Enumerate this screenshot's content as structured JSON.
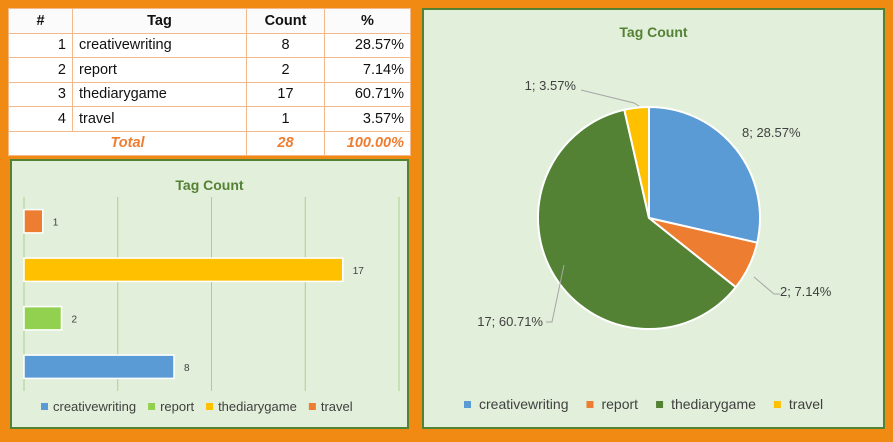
{
  "table": {
    "headers": [
      "#",
      "Tag",
      "Count",
      "%"
    ],
    "rows": [
      {
        "n": "1",
        "tag": "creativewriting",
        "count": "8",
        "pct": "28.57%"
      },
      {
        "n": "2",
        "tag": "report",
        "count": "2",
        "pct": "7.14%"
      },
      {
        "n": "3",
        "tag": "thediarygame",
        "count": "17",
        "pct": "60.71%"
      },
      {
        "n": "4",
        "tag": "travel",
        "count": "1",
        "pct": "3.57%"
      }
    ],
    "total": {
      "label": "Total",
      "count": "28",
      "pct": "100.00%"
    }
  },
  "chart_data": [
    {
      "type": "bar",
      "orientation": "horizontal",
      "title": "Tag Count",
      "categories": [
        "travel",
        "thediarygame",
        "report",
        "creativewriting"
      ],
      "values": [
        1,
        17,
        2,
        8
      ],
      "colors": [
        "#ed7d31",
        "#ffc000",
        "#92d050",
        "#5b9bd5"
      ],
      "data_labels": [
        "1",
        "17",
        "2",
        "8"
      ],
      "xlim": [
        0,
        20
      ],
      "grid": true,
      "legend_position": "bottom"
    },
    {
      "type": "pie",
      "title": "Tag Count",
      "categories": [
        "creativewriting",
        "report",
        "thediarygame",
        "travel"
      ],
      "values": [
        8,
        2,
        17,
        1
      ],
      "colors": [
        "#5b9bd5",
        "#ed7d31",
        "#548235",
        "#ffc000"
      ],
      "data_labels": [
        "8; 28.57%",
        "2; 7.14%",
        "17; 60.71%",
        "1; 3.57%"
      ],
      "legend_position": "bottom"
    }
  ],
  "legend": {
    "items": [
      {
        "label": "creativewriting",
        "color": "#5b9bd5"
      },
      {
        "label": "report",
        "color": "#ed7d31"
      },
      {
        "label": "thediarygame",
        "color": "#548235"
      },
      {
        "label": "travel",
        "color": "#ffc000"
      }
    ],
    "bar_items": [
      {
        "label": "creativewriting",
        "color": "#5b9bd5"
      },
      {
        "label": "report",
        "color": "#92d050"
      },
      {
        "label": "thediarygame",
        "color": "#ffc000"
      },
      {
        "label": "travel",
        "color": "#ed7d31"
      }
    ]
  }
}
